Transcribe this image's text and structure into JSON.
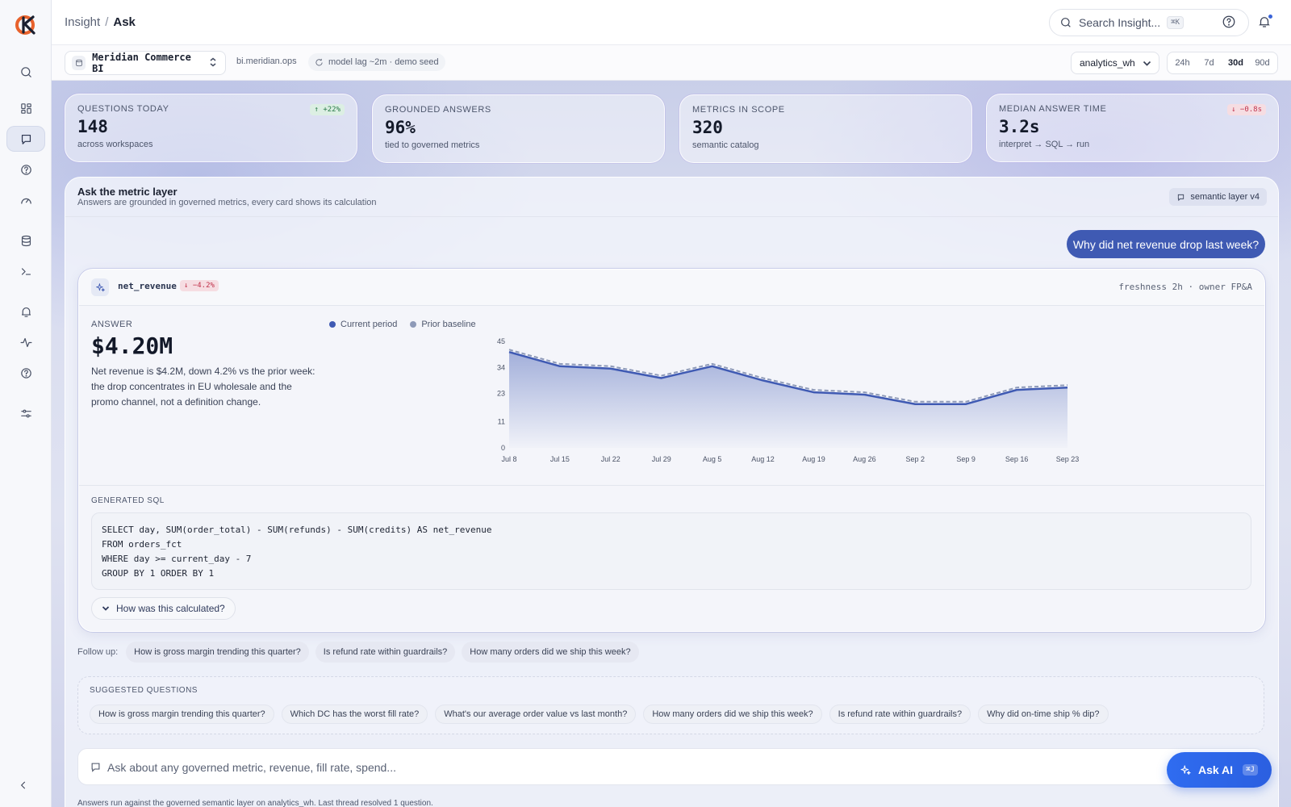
{
  "colors": {
    "accent": "#3f5ab3",
    "primary_button": "#2f6cf0",
    "positive": "#2a7a49",
    "negative": "#c0324b",
    "current_series": "#3f5ab3",
    "baseline_series": "#8e9ab8"
  },
  "sidebar": {
    "icons": [
      "search-icon",
      "dashboard-icon",
      "chat-icon",
      "help-icon",
      "gauge-icon",
      "database-icon",
      "terminal-icon",
      "bell-icon",
      "activity-icon",
      "help-icon",
      "sliders-icon"
    ],
    "active": "chat-icon"
  },
  "topbar": {
    "breadcrumb_root": "Insight",
    "breadcrumb_sep": "/",
    "breadcrumb_current": "Ask",
    "search_placeholder": "Search Insight...",
    "search_shortcut": "⌘K"
  },
  "workspace": {
    "name": "Meridian Commerce BI",
    "domain": "bi.meridian.ops",
    "status": "model lag ~2m · demo seed",
    "warehouse": "analytics_wh",
    "ranges": [
      "24h",
      "7d",
      "30d",
      "90d"
    ],
    "active_range": "30d"
  },
  "kpis": [
    {
      "label": "QUESTIONS TODAY",
      "value": "148",
      "sub": "across workspaces",
      "delta": "↑ +22%",
      "trend": "up"
    },
    {
      "label": "GROUNDED ANSWERS",
      "value": "96%",
      "sub": "tied to governed metrics",
      "delta": "",
      "trend": ""
    },
    {
      "label": "METRICS IN SCOPE",
      "value": "320",
      "sub": "semantic catalog",
      "delta": "",
      "trend": ""
    },
    {
      "label": "MEDIAN ANSWER TIME",
      "value": "3.2s",
      "sub": "interpret → SQL → run",
      "delta": "↓ −0.8s",
      "trend": "down"
    }
  ],
  "panel": {
    "title": "Ask the metric layer",
    "subtitle": "Answers are grounded in governed metrics, every card shows its calculation",
    "layer_badge": "semantic layer v4"
  },
  "thread": {
    "question": "Why did net revenue drop last week?"
  },
  "answer": {
    "metric": "net_revenue",
    "delta": "↓ −4.2%",
    "freshness": "freshness 2h · owner FP&A",
    "label": "ANSWER",
    "value": "$4.20M",
    "explanation": "Net revenue is $4.2M, down 4.2% vs the prior week: the drop concentrates in EU wholesale and the promo channel, not a definition change.",
    "sql_label": "GENERATED SQL",
    "sql_lines": [
      "SELECT day, SUM(order_total) - SUM(refunds) - SUM(credits) AS net_revenue",
      "FROM orders_fct",
      "WHERE day >= current_day - 7",
      "GROUP BY 1 ORDER BY 1"
    ],
    "how_label": "How was this calculated?"
  },
  "chart_data": {
    "type": "area",
    "x": [
      "Jul 8",
      "Jul 15",
      "Jul 22",
      "Jul 29",
      "Aug 5",
      "Aug 12",
      "Aug 19",
      "Aug 26",
      "Sep 2",
      "Sep 9",
      "Sep 16",
      "Sep 23"
    ],
    "series": [
      {
        "name": "Current period",
        "values": [
          40.5,
          34.5,
          33.5,
          29.5,
          34.5,
          28.5,
          23.5,
          22.5,
          18.5,
          18.5,
          24.5,
          25.5
        ]
      },
      {
        "name": "Prior baseline",
        "values": [
          41.5,
          35.5,
          34.5,
          30.5,
          35.5,
          29.5,
          24.5,
          23.5,
          19.5,
          19.5,
          25.5,
          26.5
        ]
      }
    ],
    "yticks": [
      "45",
      "34",
      "23",
      "11",
      "0"
    ],
    "ylim": [
      0,
      45
    ],
    "grid": false,
    "legend": "top-left"
  },
  "followups": {
    "label": "Follow up:",
    "items": [
      "How is gross margin trending this quarter?",
      "Is refund rate within guardrails?",
      "How many orders did we ship this week?"
    ]
  },
  "suggested": {
    "label": "SUGGESTED QUESTIONS",
    "items": [
      "How is gross margin trending this quarter?",
      "Which DC has the worst fill rate?",
      "What's our average order value vs last month?",
      "How many orders did we ship this week?",
      "Is refund rate within guardrails?",
      "Why did on-time ship % dip?"
    ]
  },
  "composer": {
    "placeholder": "Ask about any governed metric, revenue, fill rate, spend...",
    "ask_label": "Ask AI",
    "ask_shortcut": "⌘J"
  },
  "footnote": "Answers run against the governed semantic layer on analytics_wh. Last thread resolved 1 question."
}
